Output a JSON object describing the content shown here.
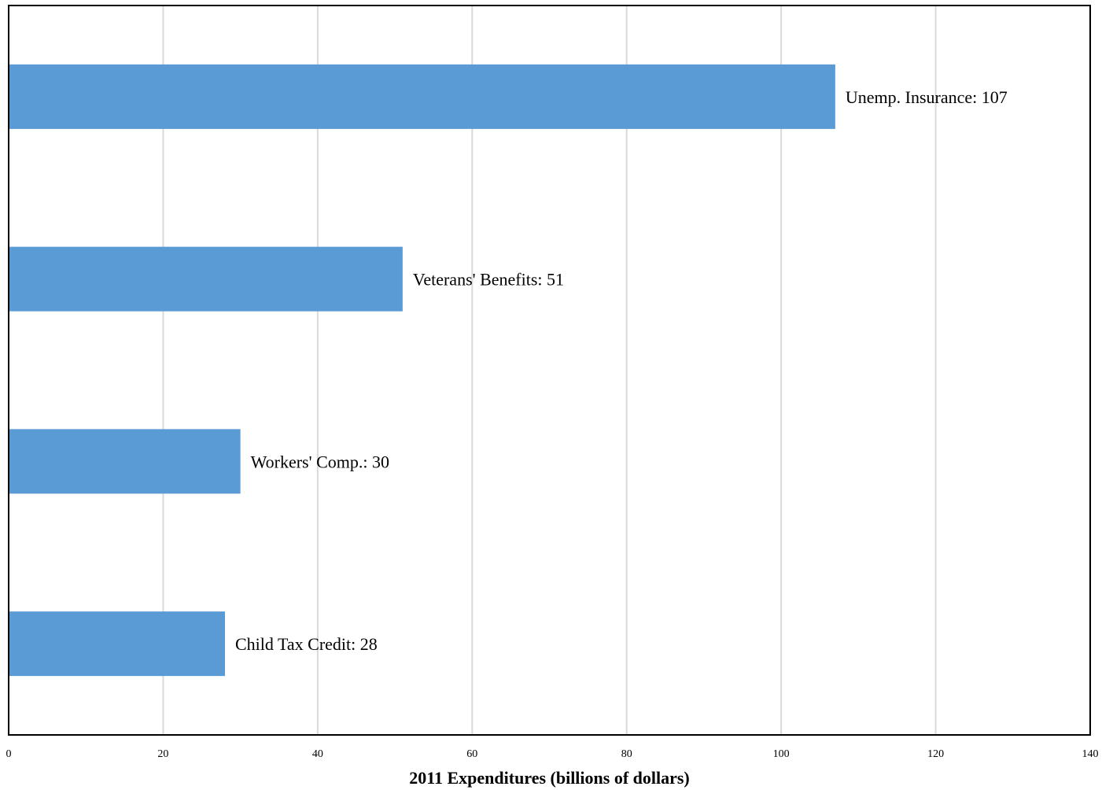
{
  "chart_data": {
    "type": "bar",
    "orientation": "horizontal",
    "title": "",
    "xlabel": "2011 Expenditures (billions of dollars)",
    "ylabel": "",
    "xlim": [
      0,
      140
    ],
    "x_ticks": [
      0,
      20,
      40,
      60,
      80,
      100,
      120,
      140
    ],
    "grid": "vertical",
    "categories": [
      "Unemp. Insurance",
      "Veterans' Benefits",
      "Workers' Comp.",
      "Child Tax Credit"
    ],
    "values": [
      107,
      51,
      30,
      28
    ],
    "data_labels": [
      "Unemp. Insurance: 107",
      "Veterans' Benefits: 51",
      "Workers' Comp.: 30",
      "Child Tax Credit: 28"
    ],
    "bar_color": "#5b9bd5",
    "grid_color": "#d9d9d9",
    "axis_color": "#000000"
  }
}
